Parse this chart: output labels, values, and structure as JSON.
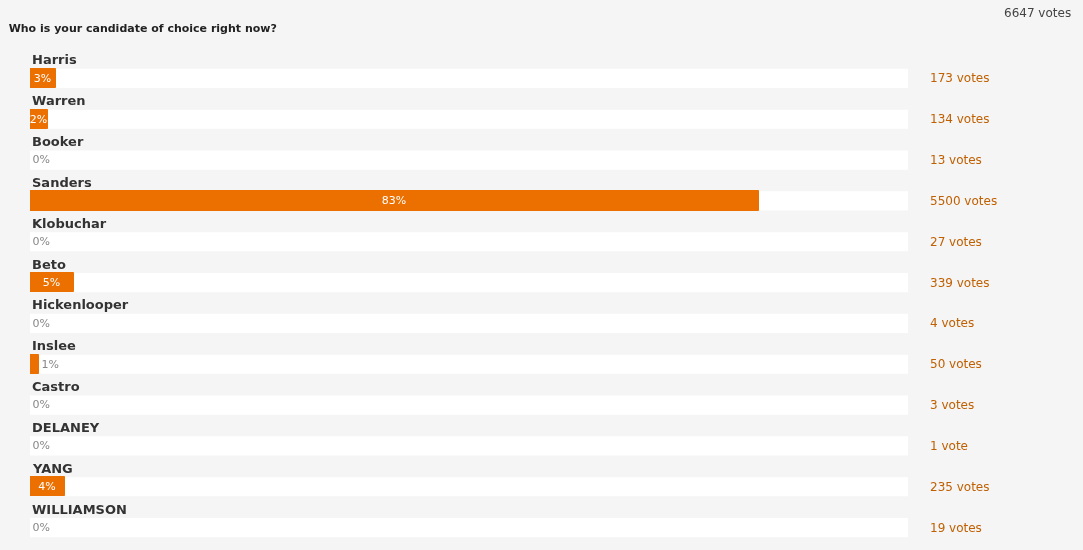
{
  "chart_data": {
    "type": "bar",
    "orientation": "horizontal",
    "title": "Who is your candidate of choice right now?",
    "categories": [
      "Harris",
      "Warren",
      "Booker",
      "Sanders",
      "Klobuchar",
      "Beto",
      "Hickenlooper",
      "Inslee",
      "Castro",
      "DELANEY",
      "YANG",
      "WILLIAMSON"
    ],
    "values": [
      3,
      2,
      0,
      83,
      0,
      5,
      0,
      1,
      0,
      0,
      4,
      0
    ],
    "value_labels": [
      "3%",
      "2%",
      "0%",
      "83%",
      "0%",
      "5%",
      "0%",
      "1%",
      "0%",
      "0%",
      "4%",
      "0%"
    ],
    "color": "#ec7000",
    "xlim": [
      0,
      100
    ],
    "annotations": [
      "6647 votes",
      "173 votes",
      "134 votes",
      "13 votes",
      "5500 votes",
      "27 votes",
      "339 votes",
      "4 votes",
      "50 votes",
      "3 votes",
      "1 vote",
      "235 votes",
      "19 votes"
    ]
  }
}
